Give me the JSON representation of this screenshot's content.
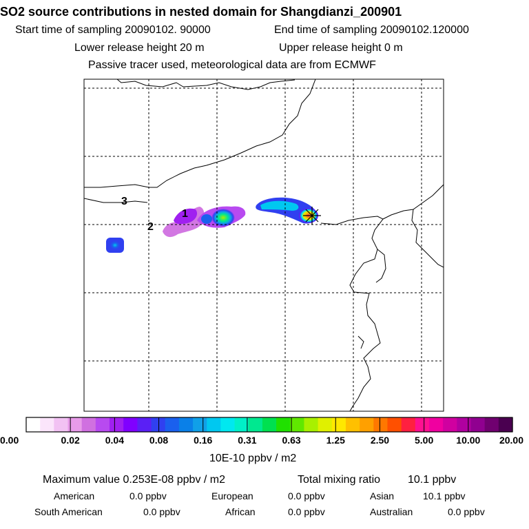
{
  "header": {
    "title": "SO2 source contributions in nested domain for Shangdianzi_200901",
    "start_label": "Start time of sampling 20090102. 90000",
    "end_label": "End time of sampling 20090102.120000",
    "lower_label": "Lower release height   20 m",
    "upper_label": "Upper release height    0 m",
    "tracer_label": "Passive tracer used, meteorological data are from ECMWF"
  },
  "map": {
    "site_labels": [
      "1",
      "2",
      "3"
    ],
    "receptor_marker": "star-marker"
  },
  "colorbar": {
    "colors": [
      "#ffffff",
      "#fbe5fb",
      "#f2c2f3",
      "#e89be9",
      "#d070e0",
      "#b84af0",
      "#a020f0",
      "#8000ff",
      "#5a20f5",
      "#3040f0",
      "#1a60ee",
      "#0a80e8",
      "#10a0e8",
      "#00c8f0",
      "#00e8f0",
      "#00f0c8",
      "#00e890",
      "#00e050",
      "#20e000",
      "#60e800",
      "#a8f000",
      "#e0f000",
      "#ffe800",
      "#ffc000",
      "#ffa000",
      "#ff7800",
      "#ff5000",
      "#ff2040",
      "#ff1090",
      "#f000a0",
      "#d000a0",
      "#b000a0",
      "#900090",
      "#700070",
      "#4a0050"
    ],
    "ticks": [
      "0.00",
      "0.02",
      "0.04",
      "0.08",
      "0.16",
      "0.31",
      "0.63",
      "1.25",
      "2.50",
      "5.00",
      "10.00",
      "20.00"
    ],
    "units": "10E-10 ppbv / m2"
  },
  "summary": {
    "max_label": "Maximum value  0.253E-08 ppbv / m2",
    "total_label": "Total mixing ratio",
    "total_value": "10.1 ppbv",
    "regions": [
      {
        "name": "American",
        "value": "0.0 ppbv"
      },
      {
        "name": "European",
        "value": "0.0 ppbv"
      },
      {
        "name": "Asian",
        "value": "10.1 ppbv"
      },
      {
        "name": "South American",
        "value": "0.0 ppbv"
      },
      {
        "name": "African",
        "value": "0.0 ppbv"
      },
      {
        "name": "Australian",
        "value": "0.0 ppbv"
      }
    ]
  }
}
